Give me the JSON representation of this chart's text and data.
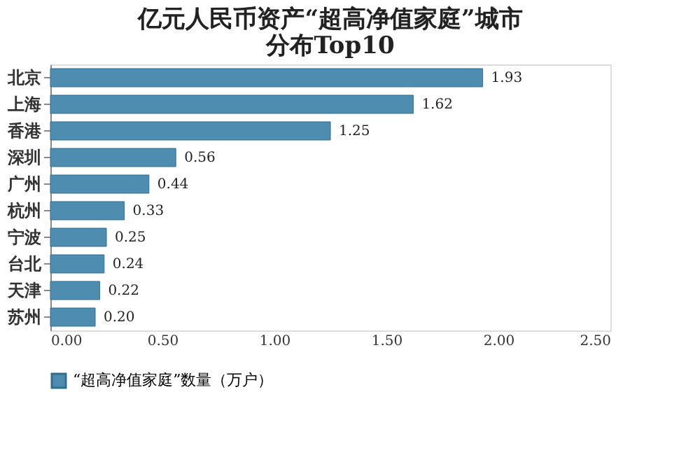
{
  "chart_data": {
    "type": "bar",
    "orientation": "horizontal",
    "title": "亿元人民币资产“超高净值家庭”城市分布Top10",
    "categories": [
      "北京",
      "上海",
      "香港",
      "深圳",
      "广州",
      "杭州",
      "宁波",
      "台北",
      "天津",
      "苏州"
    ],
    "series": [
      {
        "name": "“超高净值家庭”数量（万户）",
        "color": "#4f8db0",
        "values": [
          1.93,
          1.62,
          1.25,
          0.56,
          0.44,
          0.33,
          0.25,
          0.24,
          0.22,
          0.2
        ],
        "value_labels": [
          "1.93",
          "1.62",
          "1.25",
          "0.56",
          "0.44",
          "0.33",
          "0.25",
          "0.24",
          "0.22",
          "0.20"
        ]
      }
    ],
    "xlim": [
      0,
      2.5
    ],
    "xticks": [
      {
        "value": 0,
        "label": "0.00"
      },
      {
        "value": 0.5,
        "label": "0.50"
      },
      {
        "value": 1,
        "label": "1.00"
      },
      {
        "value": 1.5,
        "label": "1.50"
      },
      {
        "value": 2,
        "label": "2.00"
      },
      {
        "value": 2.5,
        "label": "2.50"
      }
    ],
    "legend": "bottom",
    "grid": false
  }
}
